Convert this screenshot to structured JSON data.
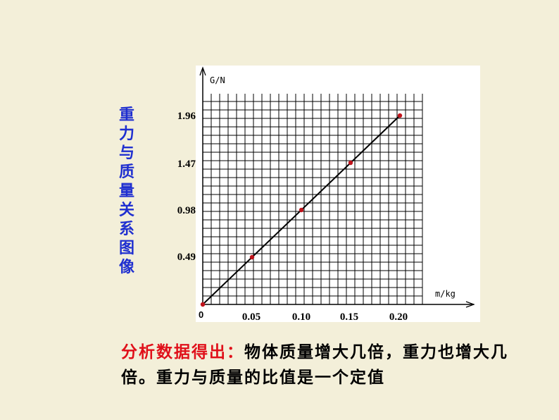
{
  "chart_data": {
    "type": "line",
    "title": "重力与质量关系图像",
    "xlabel": "m/kg",
    "ylabel": "G/N",
    "origin_label": "0",
    "x_ticks": [
      "0.05",
      "0.10",
      "0.15",
      "0.20"
    ],
    "y_ticks": [
      "0.49",
      "0.98",
      "1.47",
      "1.96"
    ],
    "xlim": [
      0,
      0.2
    ],
    "ylim": [
      0,
      1.96
    ],
    "grid": true,
    "points": [
      {
        "x": 0,
        "y": 0
      },
      {
        "x": 0.05,
        "y": 0.49
      },
      {
        "x": 0.1,
        "y": 0.98
      },
      {
        "x": 0.15,
        "y": 1.47
      },
      {
        "x": 0.2,
        "y": 1.96
      }
    ],
    "colors": {
      "line": "#000000",
      "points": "#c0141c",
      "grid": "#000000"
    }
  },
  "conclusion": {
    "lead": "分析数据得出：",
    "text": "物体质量增大几倍，重力也增大几倍。重力与质量的比值是一个定值"
  }
}
